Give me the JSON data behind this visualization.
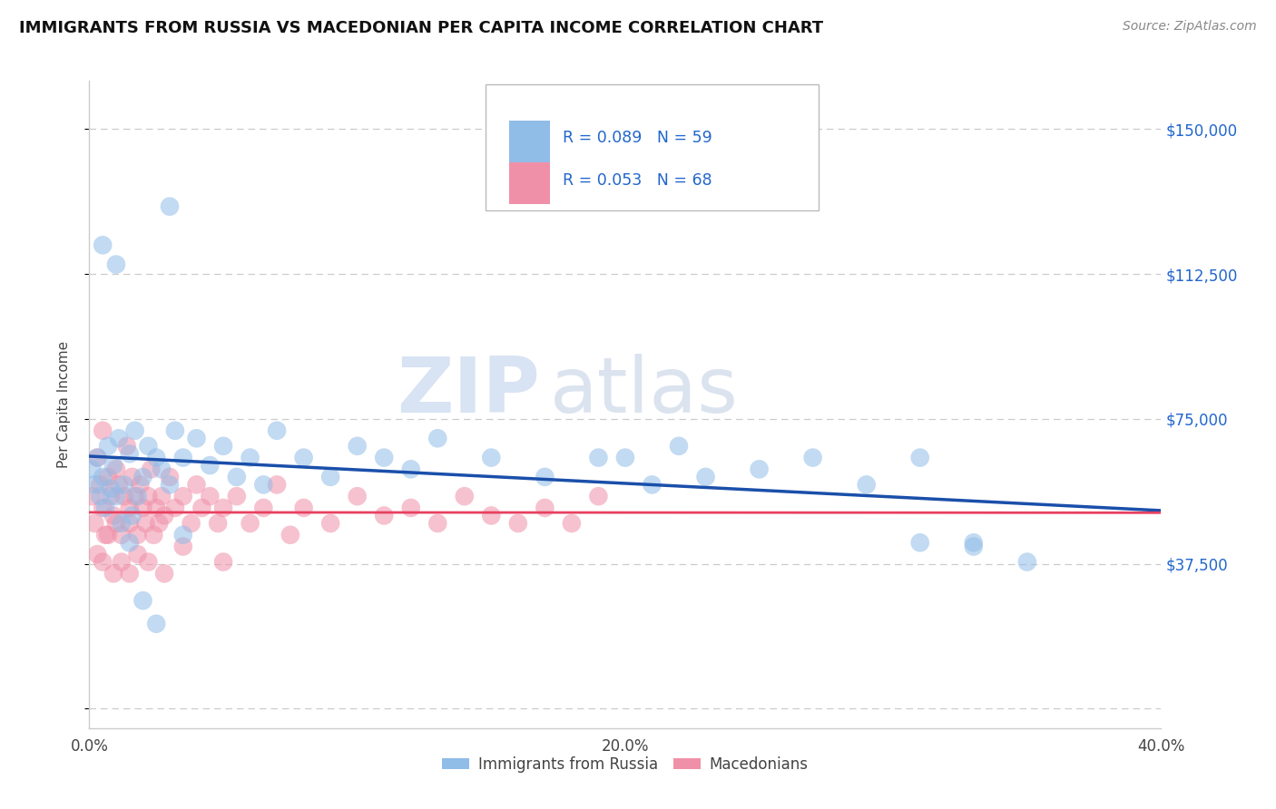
{
  "title": "IMMIGRANTS FROM RUSSIA VS MACEDONIAN PER CAPITA INCOME CORRELATION CHART",
  "source": "Source: ZipAtlas.com",
  "ylabel": "Per Capita Income",
  "xlim": [
    0.0,
    0.4
  ],
  "ylim": [
    -5000,
    162500
  ],
  "yticks": [
    0,
    37500,
    75000,
    112500,
    150000
  ],
  "ytick_labels": [
    "",
    "$37,500",
    "$75,000",
    "$112,500",
    "$150,000"
  ],
  "xticks": [
    0.0,
    0.1,
    0.2,
    0.3,
    0.4
  ],
  "xtick_labels": [
    "0.0%",
    "",
    "20.0%",
    "",
    "40.0%"
  ],
  "blue_color": "#90bce8",
  "pink_color": "#f090a8",
  "trend_blue": "#1a4faa",
  "trend_pink": "#e84060",
  "series1_label": "Immigrants from Russia",
  "series2_label": "Macedonians",
  "r1": "0.089",
  "n1": "59",
  "r2": "0.053",
  "n2": "68",
  "watermark_zip": "ZIP",
  "watermark_atlas": "atlas",
  "blue_x": [
    0.001,
    0.002,
    0.003,
    0.004,
    0.005,
    0.006,
    0.007,
    0.008,
    0.009,
    0.01,
    0.011,
    0.012,
    0.013,
    0.015,
    0.016,
    0.017,
    0.018,
    0.02,
    0.022,
    0.025,
    0.027,
    0.03,
    0.032,
    0.035,
    0.04,
    0.045,
    0.05,
    0.055,
    0.06,
    0.065,
    0.07,
    0.08,
    0.09,
    0.1,
    0.11,
    0.12,
    0.13,
    0.15,
    0.17,
    0.19,
    0.2,
    0.21,
    0.22,
    0.23,
    0.25,
    0.27,
    0.29,
    0.31,
    0.33,
    0.35,
    0.005,
    0.01,
    0.015,
    0.02,
    0.025,
    0.03,
    0.035,
    0.31,
    0.33
  ],
  "blue_y": [
    62000,
    58000,
    65000,
    55000,
    60000,
    52000,
    68000,
    57000,
    63000,
    55000,
    70000,
    48000,
    58000,
    66000,
    50000,
    72000,
    55000,
    60000,
    68000,
    65000,
    62000,
    58000,
    72000,
    65000,
    70000,
    63000,
    68000,
    60000,
    65000,
    58000,
    72000,
    65000,
    60000,
    68000,
    65000,
    62000,
    70000,
    65000,
    60000,
    65000,
    65000,
    58000,
    68000,
    60000,
    62000,
    65000,
    58000,
    65000,
    43000,
    38000,
    120000,
    115000,
    43000,
    28000,
    22000,
    130000,
    45000,
    43000,
    42000
  ],
  "pink_x": [
    0.001,
    0.002,
    0.003,
    0.004,
    0.005,
    0.005,
    0.006,
    0.007,
    0.008,
    0.009,
    0.01,
    0.01,
    0.011,
    0.012,
    0.013,
    0.014,
    0.015,
    0.015,
    0.016,
    0.017,
    0.018,
    0.019,
    0.02,
    0.021,
    0.022,
    0.023,
    0.024,
    0.025,
    0.026,
    0.027,
    0.028,
    0.03,
    0.032,
    0.035,
    0.038,
    0.04,
    0.042,
    0.045,
    0.048,
    0.05,
    0.055,
    0.06,
    0.065,
    0.07,
    0.075,
    0.08,
    0.09,
    0.1,
    0.11,
    0.12,
    0.13,
    0.14,
    0.15,
    0.16,
    0.17,
    0.18,
    0.19,
    0.003,
    0.005,
    0.007,
    0.009,
    0.012,
    0.015,
    0.018,
    0.022,
    0.028,
    0.035,
    0.05
  ],
  "pink_y": [
    55000,
    48000,
    65000,
    58000,
    52000,
    72000,
    45000,
    60000,
    55000,
    50000,
    62000,
    48000,
    58000,
    45000,
    55000,
    68000,
    52000,
    48000,
    60000,
    55000,
    45000,
    58000,
    52000,
    48000,
    55000,
    62000,
    45000,
    52000,
    48000,
    55000,
    50000,
    60000,
    52000,
    55000,
    48000,
    58000,
    52000,
    55000,
    48000,
    52000,
    55000,
    48000,
    52000,
    58000,
    45000,
    52000,
    48000,
    55000,
    50000,
    52000,
    48000,
    55000,
    50000,
    48000,
    52000,
    48000,
    55000,
    40000,
    38000,
    45000,
    35000,
    38000,
    35000,
    40000,
    38000,
    35000,
    42000,
    38000
  ]
}
